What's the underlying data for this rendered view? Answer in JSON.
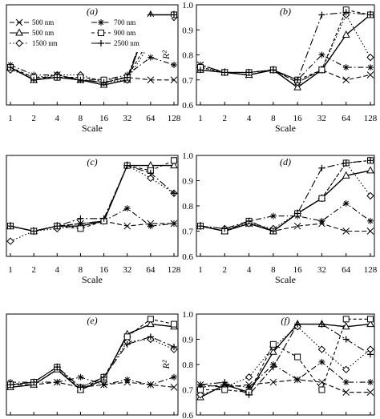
{
  "chart_data": [
    {
      "type": "line",
      "panel_label": "(a)",
      "ylim": [
        0.6,
        1.0
      ],
      "y_axis_visible": false,
      "xlabel": "Scale",
      "ylabel": "",
      "x_tick_labels": [
        "1",
        "2",
        "4",
        "8",
        "16",
        "32",
        "64",
        "128"
      ],
      "y_tick_labels": [],
      "x": [
        1,
        2,
        4,
        8,
        16,
        32,
        64,
        128
      ],
      "legend": {
        "position": "top",
        "columns": 2
      },
      "series": [
        {
          "name": "500 nm",
          "style": "dashed-x",
          "values": [
            0.75,
            0.7,
            0.72,
            0.7,
            0.69,
            0.71,
            0.7,
            0.7
          ]
        },
        {
          "name": "500 nm",
          "style": "solid-triangle",
          "values": [
            0.75,
            0.7,
            0.71,
            0.7,
            0.68,
            0.7,
            0.96,
            0.96
          ]
        },
        {
          "name": "1500 nm",
          "style": "dotted-diamond",
          "values": [
            0.74,
            0.71,
            0.72,
            0.72,
            0.69,
            0.7,
            0.85,
            0.95
          ]
        },
        {
          "name": "700 nm",
          "style": "dashdot-star",
          "values": [
            0.76,
            0.72,
            0.72,
            0.7,
            0.7,
            0.72,
            0.79,
            0.76
          ]
        },
        {
          "name": "900 nm",
          "style": "dashed-square",
          "values": [
            0.75,
            0.71,
            0.71,
            0.71,
            0.7,
            0.71,
            0.87,
            0.96
          ]
        },
        {
          "name": "2500 nm",
          "style": "dashdot-plus",
          "values": [
            0.75,
            0.7,
            0.71,
            0.7,
            0.69,
            0.71,
            0.96,
            0.96
          ]
        }
      ]
    },
    {
      "type": "line",
      "panel_label": "(b)",
      "ylim": [
        0.6,
        1.0
      ],
      "y_axis_visible": true,
      "xlabel": "Scale",
      "ylabel": "R²",
      "x_tick_labels": [
        "1",
        "2",
        "4",
        "8",
        "16",
        "32",
        "64",
        "128"
      ],
      "y_tick_labels": [
        "0.6",
        "0.7",
        "0.8",
        "0.9",
        "1.0"
      ],
      "x": [
        1,
        2,
        4,
        8,
        16,
        32,
        64,
        128
      ],
      "series": [
        {
          "name": "500 nm",
          "style": "dashed-x",
          "values": [
            0.76,
            0.73,
            0.72,
            0.74,
            0.69,
            0.74,
            0.7,
            0.72
          ]
        },
        {
          "name": "500 nm",
          "style": "solid-triangle",
          "values": [
            0.74,
            0.73,
            0.72,
            0.74,
            0.67,
            0.74,
            0.88,
            0.96
          ]
        },
        {
          "name": "1500 nm",
          "style": "dotted-diamond",
          "values": [
            0.75,
            0.73,
            0.73,
            0.74,
            0.69,
            0.74,
            0.96,
            0.79
          ]
        },
        {
          "name": "700 nm",
          "style": "dashdot-star",
          "values": [
            0.76,
            0.73,
            0.73,
            0.74,
            0.7,
            0.8,
            0.75,
            0.75
          ]
        },
        {
          "name": "900 nm",
          "style": "dashed-square",
          "values": [
            0.75,
            0.73,
            0.73,
            0.74,
            0.7,
            0.74,
            0.98,
            0.96
          ]
        },
        {
          "name": "2500 nm",
          "style": "dashdot-plus",
          "values": [
            0.74,
            0.73,
            0.73,
            0.74,
            0.7,
            0.96,
            0.97,
            0.96
          ]
        }
      ]
    },
    {
      "type": "line",
      "panel_label": "(c)",
      "ylim": [
        0.6,
        1.0
      ],
      "y_axis_visible": false,
      "xlabel": "Scale",
      "ylabel": "",
      "x_tick_labels": [
        "1",
        "2",
        "4",
        "8",
        "16",
        "32",
        "64",
        "128"
      ],
      "y_tick_labels": [],
      "x": [
        1,
        2,
        4,
        8,
        16,
        32,
        64,
        128
      ],
      "series": [
        {
          "name": "500 nm",
          "style": "dashed-x",
          "values": [
            0.72,
            0.7,
            0.72,
            0.73,
            0.74,
            0.72,
            0.73,
            0.73
          ]
        },
        {
          "name": "500 nm",
          "style": "solid-triangle",
          "values": [
            0.72,
            0.7,
            0.72,
            0.72,
            0.74,
            0.96,
            0.96,
            0.96
          ]
        },
        {
          "name": "1500 nm",
          "style": "dotted-diamond",
          "values": [
            0.66,
            0.7,
            0.71,
            0.72,
            0.74,
            0.96,
            0.91,
            0.85
          ]
        },
        {
          "name": "700 nm",
          "style": "dashdot-star",
          "values": [
            0.72,
            0.7,
            0.72,
            0.73,
            0.74,
            0.79,
            0.72,
            0.73
          ]
        },
        {
          "name": "900 nm",
          "style": "dashed-square",
          "values": [
            0.72,
            0.7,
            0.72,
            0.71,
            0.74,
            0.96,
            0.94,
            0.98
          ]
        },
        {
          "name": "2500 nm",
          "style": "dashdot-plus",
          "values": [
            0.72,
            0.7,
            0.72,
            0.75,
            0.75,
            0.96,
            0.93,
            0.85
          ]
        }
      ]
    },
    {
      "type": "line",
      "panel_label": "(d)",
      "ylim": [
        0.6,
        1.0
      ],
      "y_axis_visible": true,
      "xlabel": "Scale",
      "ylabel": "",
      "x_tick_labels": [
        "1",
        "2",
        "4",
        "8",
        "16",
        "32",
        "64",
        "128"
      ],
      "y_tick_labels": [
        "0.6",
        "0.7",
        "0.8",
        "0.9",
        "1.0"
      ],
      "x": [
        1,
        2,
        4,
        8,
        16,
        32,
        64,
        128
      ],
      "series": [
        {
          "name": "500 nm",
          "style": "dashed-x",
          "values": [
            0.72,
            0.7,
            0.73,
            0.7,
            0.72,
            0.73,
            0.7,
            0.7
          ]
        },
        {
          "name": "500 nm",
          "style": "solid-triangle",
          "values": [
            0.72,
            0.7,
            0.73,
            0.7,
            0.77,
            0.83,
            0.92,
            0.94
          ]
        },
        {
          "name": "1500 nm",
          "style": "dotted-diamond",
          "values": [
            0.72,
            0.71,
            0.73,
            0.71,
            0.77,
            0.83,
            0.97,
            0.84
          ]
        },
        {
          "name": "700 nm",
          "style": "dashdot-star",
          "values": [
            0.72,
            0.7,
            0.74,
            0.76,
            0.76,
            0.74,
            0.81,
            0.74
          ]
        },
        {
          "name": "900 nm",
          "style": "dashed-square",
          "values": [
            0.72,
            0.7,
            0.74,
            0.7,
            0.77,
            0.83,
            0.97,
            0.98
          ]
        },
        {
          "name": "2500 nm",
          "style": "dashdot-plus",
          "values": [
            0.72,
            0.71,
            0.74,
            0.7,
            0.77,
            0.95,
            0.97,
            0.98
          ]
        }
      ]
    },
    {
      "type": "line",
      "panel_label": "(e)",
      "ylim": [
        0.6,
        1.0
      ],
      "y_axis_visible": false,
      "xlabel": "",
      "ylabel": "",
      "x_tick_labels": [],
      "y_tick_labels": [],
      "x": [
        1,
        2,
        4,
        8,
        16,
        32,
        64,
        128
      ],
      "series": [
        {
          "name": "500 nm",
          "style": "dashed-x",
          "values": [
            0.72,
            0.72,
            0.73,
            0.71,
            0.72,
            0.73,
            0.72,
            0.71
          ]
        },
        {
          "name": "500 nm",
          "style": "solid-triangle",
          "values": [
            0.71,
            0.72,
            0.78,
            0.7,
            0.74,
            0.92,
            0.96,
            0.95
          ]
        },
        {
          "name": "1500 nm",
          "style": "dotted-diamond",
          "values": [
            0.72,
            0.73,
            0.79,
            0.71,
            0.75,
            0.89,
            0.9,
            0.86
          ]
        },
        {
          "name": "700 nm",
          "style": "dashdot-star",
          "values": [
            0.73,
            0.73,
            0.73,
            0.75,
            0.72,
            0.74,
            0.72,
            0.75
          ]
        },
        {
          "name": "900 nm",
          "style": "dashed-square",
          "values": [
            0.72,
            0.73,
            0.79,
            0.7,
            0.75,
            0.91,
            0.98,
            0.96
          ]
        },
        {
          "name": "2500 nm",
          "style": "dashdot-plus",
          "values": [
            0.72,
            0.73,
            0.79,
            0.71,
            0.75,
            0.88,
            0.91,
            0.87
          ]
        }
      ]
    },
    {
      "type": "line",
      "panel_label": "(f)",
      "ylim": [
        0.6,
        1.0
      ],
      "y_axis_visible": true,
      "xlabel": "",
      "ylabel": "R²",
      "x_tick_labels": [],
      "y_tick_labels": [
        "0.6",
        "0.7",
        "0.8",
        "0.9",
        "1.0"
      ],
      "x": [
        1,
        2,
        4,
        8,
        16,
        32,
        64,
        128
      ],
      "series": [
        {
          "name": "500 nm",
          "style": "dashed-x",
          "values": [
            0.72,
            0.71,
            0.72,
            0.73,
            0.74,
            0.73,
            0.69,
            0.69
          ]
        },
        {
          "name": "500 nm",
          "style": "solid-triangle",
          "values": [
            0.67,
            0.72,
            0.69,
            0.85,
            0.96,
            0.96,
            0.95,
            0.96
          ]
        },
        {
          "name": "1500 nm",
          "style": "dotted-diamond",
          "values": [
            0.68,
            0.71,
            0.75,
            0.87,
            0.95,
            0.86,
            0.78,
            0.86
          ]
        },
        {
          "name": "700 nm",
          "style": "dashdot-star",
          "values": [
            0.71,
            0.72,
            0.71,
            0.8,
            0.74,
            0.81,
            0.73,
            0.73
          ]
        },
        {
          "name": "900 nm",
          "style": "dashed-square",
          "values": [
            0.7,
            0.7,
            0.69,
            0.88,
            0.83,
            0.7,
            0.98,
            0.98
          ]
        },
        {
          "name": "2500 nm",
          "style": "dashdot-plus",
          "values": [
            0.72,
            0.73,
            0.68,
            0.79,
            0.96,
            0.96,
            0.9,
            0.84
          ]
        }
      ]
    }
  ]
}
